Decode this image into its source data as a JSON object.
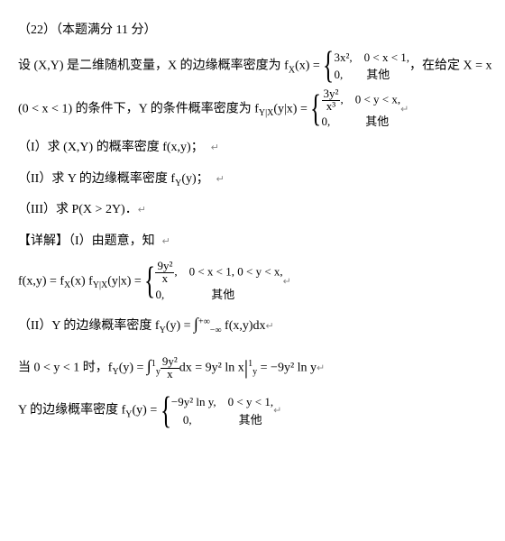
{
  "header": "（22）（本题满分 11 分）",
  "l1a": "设 (X,Y) 是二维随机变量，X 的边缘概率密度为 f",
  "l1sub": "X",
  "l1b": "(x) = ",
  "c1a": "3x²,　0 < x < 1,",
  "c1b": "0,　　其他",
  "l1c": "，在给定 X = x",
  "l2a": "(0 < x < 1) 的条件下，Y 的条件概率密度为 f",
  "l2sub": "Y|X",
  "l2b": "(y|x) = ",
  "f1n": "3y²",
  "f1d": "x³",
  "c2a": ",　0 < y < x,",
  "c2b": "0,　　　其他",
  "p1": "（I）求 (X,Y) 的概率密度 f(x,y)；",
  "p2": "（II）求 Y 的边缘概率密度 f",
  "p2sub": "Y",
  "p2b": "(y)；",
  "p3": "（III）求 P(X > 2Y)．",
  "sol": "【详解】（I）由题意，知",
  "s1a": "f(x,y) = f",
  "s1s1": "X",
  "s1b": "(x) f",
  "s1s2": "Y|X",
  "s1c": "(y|x) = ",
  "f2n": "9y²",
  "f2d": "x",
  "c3a": ",　0 < x < 1, 0 < y < x,",
  "c3b": "0,　　　　其他",
  "s2a": "（II）Y 的边缘概率密度 f",
  "s2sub": "Y",
  "s2b": "(y) = ",
  "intlim1": "+∞",
  "intlim2": "−∞",
  "s2c": " f(x,y)dx",
  "s3a": "当 0 < y < 1 时，f",
  "s3sub": "Y",
  "s3b": "(y) = ",
  "il1": "1",
  "il2": "y",
  "f3n": "9y²",
  "f3d": "x",
  "s3c": "dx = 9y² ln x",
  "bar1": "1",
  "bar2": "y",
  "s3d": " = −9y² ln y",
  "s4a": "Y 的边缘概率密度 f",
  "s4sub": "Y",
  "s4b": "(y) = ",
  "c4a": "−9y² ln y,　0 < y < 1,",
  "c4b": "　0,　　　　其他",
  "ar": "↵"
}
